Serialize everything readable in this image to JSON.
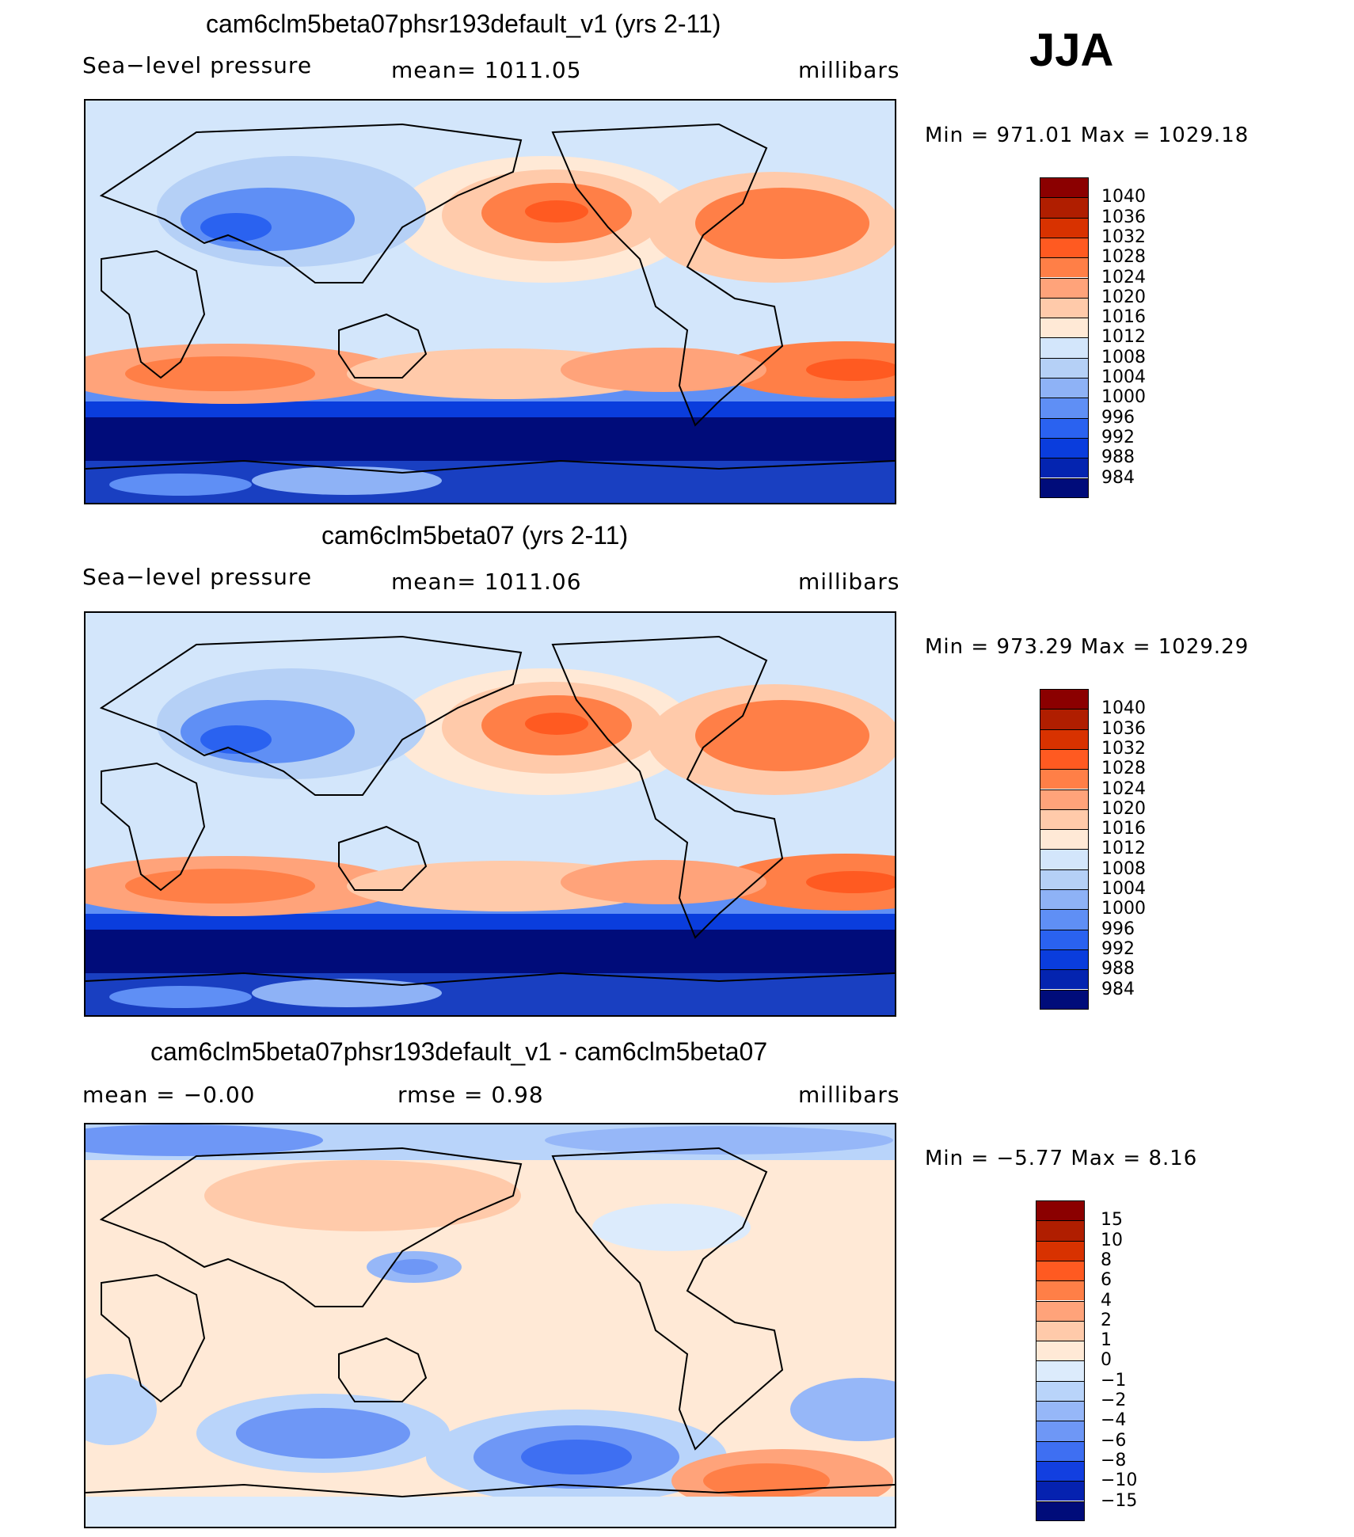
{
  "season": "JJA",
  "colors": {
    "abs": [
      "#8b0000",
      "#b01e00",
      "#d83200",
      "#ff5a21",
      "#ff7f47",
      "#ffa37a",
      "#ffcaaa",
      "#ffe9d6",
      "#d3e6fb",
      "#b5d0f6",
      "#8eb2f6",
      "#5f8ff5",
      "#2a62f0",
      "#0a3ddd",
      "#0424b0",
      "#000c7a"
    ],
    "diff": [
      "#8b0000",
      "#b01e00",
      "#d83200",
      "#ff5a21",
      "#ff7f47",
      "#ffa37a",
      "#ffcaaa",
      "#ffe9d6",
      "#dcebfc",
      "#b9d4fa",
      "#96b7f8",
      "#6e97f6",
      "#3e6ff2",
      "#123fe0",
      "#0522b0",
      "#000c7a"
    ]
  },
  "panels": [
    {
      "title": "cam6clm5beta07phsr193default_v1 (yrs 2-11)",
      "left_text": "Sea−level pressure",
      "center_text": "mean=  1011.05",
      "units": "millibars",
      "minmax": "Min  =  971.01  Max  =  1029.18",
      "levels": [
        "1040",
        "1036",
        "1032",
        "1028",
        "1024",
        "1020",
        "1016",
        "1012",
        "1008",
        "1004",
        "1000",
        "996",
        "992",
        "988",
        "984"
      ]
    },
    {
      "title": "cam6clm5beta07 (yrs 2-11)",
      "left_text": "Sea−level pressure",
      "center_text": "mean=  1011.06",
      "units": "millibars",
      "minmax": "Min  =  973.29  Max  =  1029.29",
      "levels": [
        "1040",
        "1036",
        "1032",
        "1028",
        "1024",
        "1020",
        "1016",
        "1012",
        "1008",
        "1004",
        "1000",
        "996",
        "992",
        "988",
        "984"
      ]
    },
    {
      "title": "cam6clm5beta07phsr193default_v1 - cam6clm5beta07",
      "left_text": "mean  =    −0.00",
      "center_text": "rmse  =     0.98",
      "units": "millibars",
      "minmax": "Min  =   −5.77  Max  =      8.16",
      "levels": [
        "15",
        "10",
        "8",
        "6",
        "4",
        "2",
        "1",
        "0",
        "−1",
        "−2",
        "−4",
        "−6",
        "−8",
        "−10",
        "−15"
      ]
    }
  ],
  "chart_data": [
    {
      "type": "heatmap",
      "title": "cam6clm5beta07phsr193default_v1 (yrs 2-11)",
      "variable": "Sea-level pressure",
      "units": "millibars",
      "season": "JJA",
      "mean": 1011.05,
      "min": 971.01,
      "max": 1029.18,
      "colorbar_levels": [
        1040,
        1036,
        1032,
        1028,
        1024,
        1020,
        1016,
        1012,
        1008,
        1004,
        1000,
        996,
        992,
        988,
        984
      ]
    },
    {
      "type": "heatmap",
      "title": "cam6clm5beta07 (yrs 2-11)",
      "variable": "Sea-level pressure",
      "units": "millibars",
      "season": "JJA",
      "mean": 1011.06,
      "min": 973.29,
      "max": 1029.29,
      "colorbar_levels": [
        1040,
        1036,
        1032,
        1028,
        1024,
        1020,
        1016,
        1012,
        1008,
        1004,
        1000,
        996,
        992,
        988,
        984
      ]
    },
    {
      "type": "heatmap",
      "title": "cam6clm5beta07phsr193default_v1 - cam6clm5beta07",
      "units": "millibars",
      "mean": -0.0,
      "rmse": 0.98,
      "min": -5.77,
      "max": 8.16,
      "colorbar_levels": [
        15,
        10,
        8,
        6,
        4,
        2,
        1,
        0,
        -1,
        -2,
        -4,
        -6,
        -8,
        -10,
        -15
      ]
    }
  ]
}
